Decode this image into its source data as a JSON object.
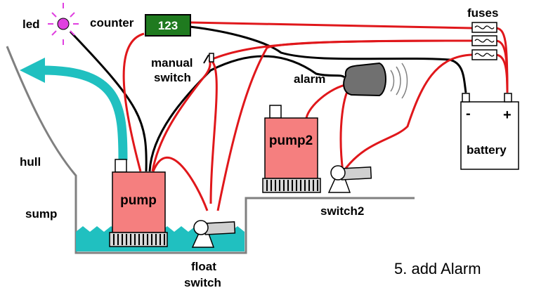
{
  "labels": {
    "led": "led",
    "counter": "counter",
    "counter_value": "123",
    "fuses": "fuses",
    "manual": "manual",
    "switch": "switch",
    "alarm": "alarm",
    "pump": "pump",
    "pump2": "pump2",
    "battery": "battery",
    "battery_minus": "-",
    "battery_plus": "+",
    "hull": "hull",
    "sump": "sump",
    "float": "float",
    "float_switch": "switch",
    "switch2": "switch2",
    "caption": "5. add Alarm"
  },
  "colors": {
    "wire_red": "#e0171b",
    "wire_black": "#000000",
    "water": "#20c0c0",
    "pump_body": "#f57f7f",
    "counter_bg": "#1f7a1f",
    "led": "#e040e0",
    "hull": "#808080",
    "alarm": "#707070"
  }
}
